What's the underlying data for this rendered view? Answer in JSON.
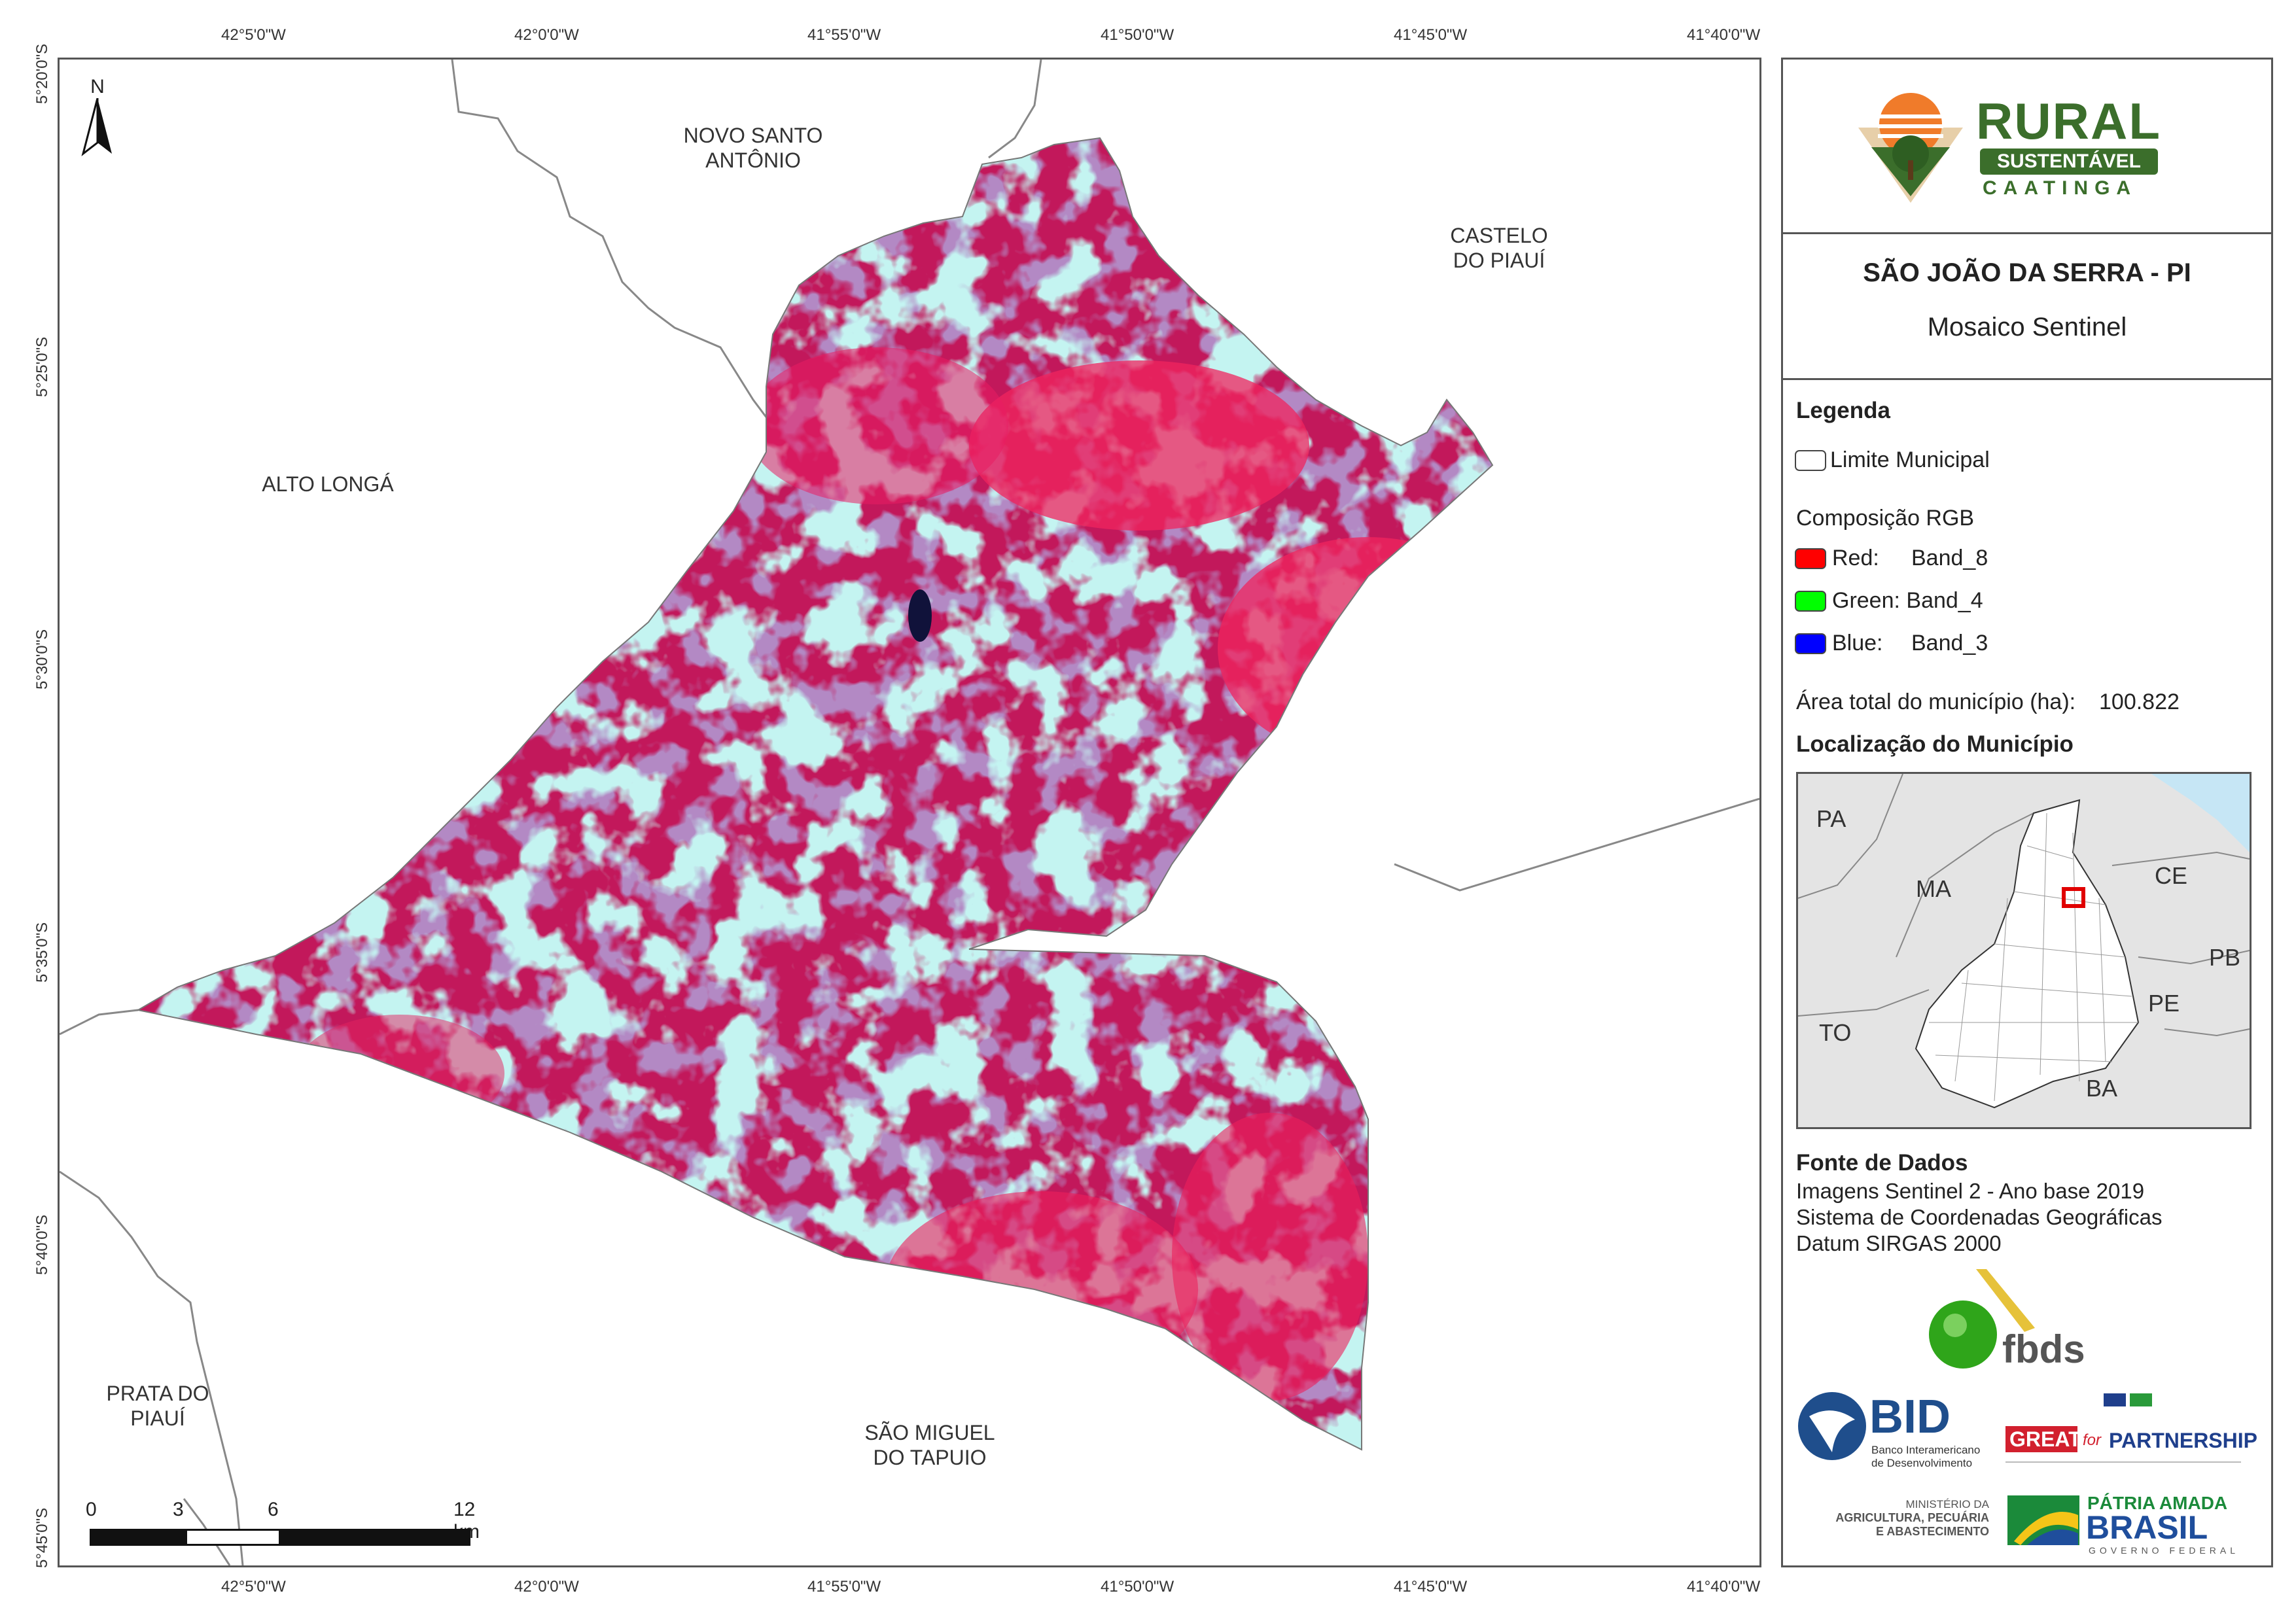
{
  "map": {
    "coords_top": [
      "42°5'0\"W",
      "42°0'0\"W",
      "41°55'0\"W",
      "41°50'0\"W",
      "41°45'0\"W",
      "41°40'0\"W"
    ],
    "coords_bottom": [
      "42°5'0\"W",
      "42°0'0\"W",
      "41°55'0\"W",
      "41°50'0\"W",
      "41°45'0\"W",
      "41°40'0\"W"
    ],
    "coords_left": [
      "5°20'0\"S",
      "5°25'0\"S",
      "5°30'0\"S",
      "5°35'0\"S",
      "5°40'0\"S",
      "5°45'0\"S"
    ],
    "north": "N",
    "neighbors": {
      "novo_santo_antonio_1": "NOVO SANTO",
      "novo_santo_antonio_2": "ANTÔNIO",
      "castelo_1": "CASTELO",
      "castelo_2": "DO PIAUÍ",
      "alto_longa": "ALTO LONGÁ",
      "prata_1": "PRATA DO",
      "prata_2": "PIAUÍ",
      "sao_miguel_1": "SÃO MIGUEL",
      "sao_miguel_2": "DO TAPUIO"
    },
    "scale": {
      "t0": "0",
      "t3": "3",
      "t6": "6",
      "t12": "12 km"
    }
  },
  "panel": {
    "logo": {
      "word1": "RURAL",
      "word2": "SUSTENTÁVEL",
      "word3": "CAATINGA"
    },
    "title": "SÃO JOÃO DA SERRA - PI",
    "subtitle": "Mosaico Sentinel",
    "legend": {
      "title": "Legenda",
      "limit": "Limite Municipal",
      "rgb_title": "Composição RGB",
      "red": "Red:",
      "red_band": "Band_8",
      "green": "Green: Band_4",
      "blue": "Blue:",
      "blue_band": "Band_3",
      "area_label": "Área total do município (ha):",
      "area_value": "100.822",
      "location_title": "Localização do Município",
      "states": {
        "pa": "PA",
        "ma": "MA",
        "ce": "CE",
        "pb": "PB",
        "pe": "PE",
        "to": "TO",
        "ba": "BA"
      }
    },
    "sources": {
      "title": "Fonte de Dados",
      "l1": "Imagens Sentinel 2 - Ano base 2019",
      "l2": "Sistema de Coordenadas Geográficas",
      "l3": "Datum SIRGAS 2000"
    },
    "logos": {
      "fbds": "fbds",
      "bid": "BID",
      "bid_sub1": "Banco Interamericano",
      "bid_sub2": "de Desenvolvimento",
      "great": "GREAT",
      "great_for": "for",
      "great_partner": "PARTNERSHIP",
      "min1": "MINISTÉRIO DA",
      "min2": "AGRICULTURA, PECUÁRIA",
      "min3": "E ABASTECIMENTO",
      "patria": "PÁTRIA AMADA",
      "brasil": "BRASIL",
      "gov": "GOVERNO FEDERAL"
    }
  },
  "colors": {
    "red": "#ff0000",
    "green": "#00ff00",
    "blue": "#0000ff",
    "magenta": "#d01a5a",
    "cyan": "#6ee8e0"
  }
}
